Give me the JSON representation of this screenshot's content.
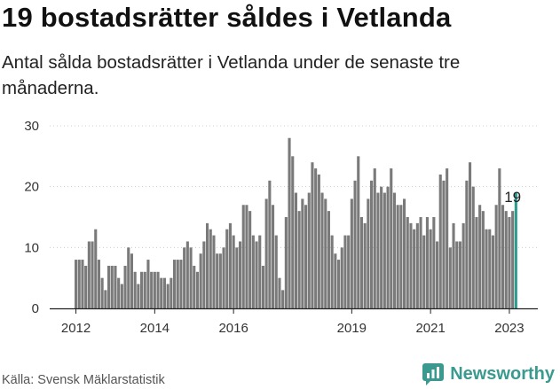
{
  "header": {
    "title": "19 bostadsrätter såldes i Vetlanda",
    "subtitle": "Antal sålda bostadsrätter i Vetlanda under de senaste tre månaderna."
  },
  "footer": {
    "source": "Källa: Svensk Mäklarstatistik",
    "brand": "Newsworthy",
    "brand_icon": "newsworthy-logo-icon"
  },
  "colors": {
    "bar": "#7a7a7a",
    "highlight": "#2a9d8f",
    "brand": "#3a9a8f"
  },
  "chart_data": {
    "type": "bar",
    "title": "19 bostadsrätter såldes i Vetlanda",
    "xlabel": "",
    "ylabel": "",
    "ylim": [
      0,
      30
    ],
    "yticks": [
      "0",
      "10",
      "20",
      "30"
    ],
    "grid": true,
    "x_tick_labels": [
      {
        "label": "2012",
        "index": 0
      },
      {
        "label": "2014",
        "index": 24
      },
      {
        "label": "2016",
        "index": 48
      },
      {
        "label": "2019",
        "index": 84
      },
      {
        "label": "2021",
        "index": 108
      },
      {
        "label": "2023",
        "index": 132
      }
    ],
    "annotation": {
      "text": "19",
      "index": 133
    },
    "series": [
      {
        "name": "Antal sålda bostadsrätter",
        "values": [
          8,
          8,
          8,
          7,
          11,
          11,
          13,
          8,
          5,
          3,
          7,
          7,
          7,
          5,
          4,
          7,
          10,
          9,
          6,
          4,
          6,
          6,
          8,
          6,
          6,
          6,
          5,
          5,
          4,
          5,
          8,
          8,
          8,
          10,
          11,
          10,
          7,
          6,
          9,
          11,
          14,
          13,
          12,
          9,
          9,
          10,
          13,
          14,
          12,
          10,
          11,
          17,
          17,
          16,
          12,
          11,
          12,
          7,
          18,
          21,
          17,
          12,
          5,
          3,
          15,
          28,
          25,
          19,
          16,
          18,
          17,
          19,
          24,
          23,
          22,
          19,
          18,
          16,
          12,
          9,
          8,
          10,
          12,
          12,
          18,
          21,
          25,
          15,
          14,
          18,
          21,
          23,
          19,
          20,
          19,
          20,
          23,
          19,
          17,
          17,
          18,
          15,
          14,
          13,
          14,
          15,
          12,
          15,
          13,
          15,
          11,
          22,
          21,
          23,
          10,
          14,
          11,
          11,
          14,
          21,
          24,
          20,
          15,
          17,
          16,
          13,
          13,
          12,
          17,
          23,
          17,
          16,
          15,
          16,
          19
        ]
      }
    ]
  }
}
